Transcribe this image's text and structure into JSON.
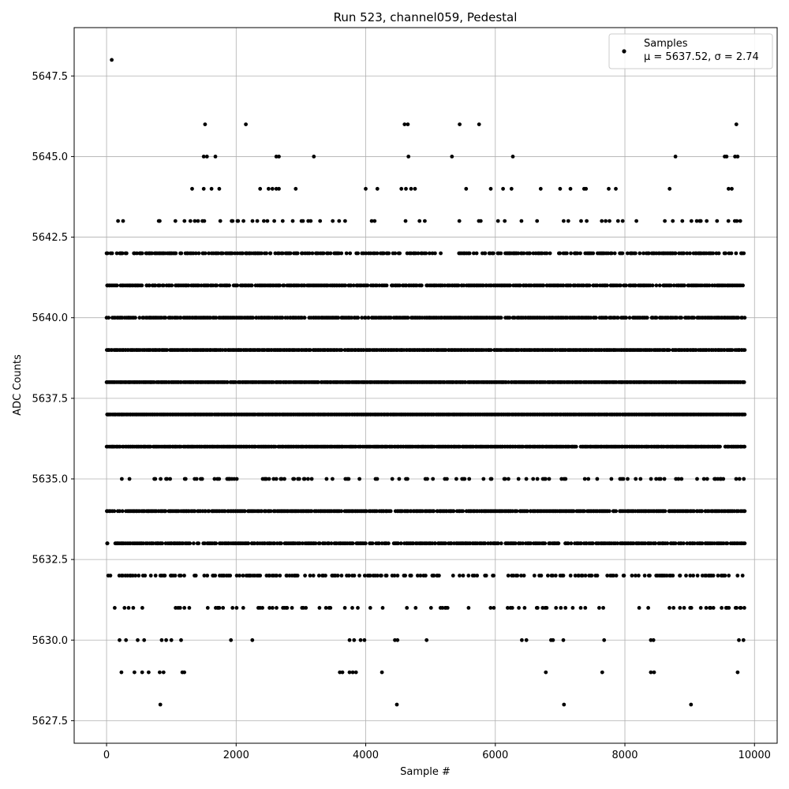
{
  "chart_data": {
    "type": "scatter",
    "title": "Run 523, channel059, Pedestal",
    "xlabel": "Sample #",
    "ylabel": "ADC Counts",
    "xlim": [
      -500,
      10350
    ],
    "ylim": [
      5626.8,
      5649.0
    ],
    "x_ticks": [
      0,
      2000,
      4000,
      6000,
      8000,
      10000
    ],
    "y_ticks": [
      5627.5,
      5630.0,
      5632.5,
      5635.0,
      5637.5,
      5640.0,
      5642.5,
      5645.0,
      5647.5
    ],
    "x_tick_labels": [
      "0",
      "2000",
      "4000",
      "6000",
      "8000",
      "10000"
    ],
    "y_tick_labels": [
      "5627.5",
      "5630.0",
      "5632.5",
      "5635.0",
      "5637.5",
      "5640.0",
      "5642.5",
      "5645.0",
      "5647.5"
    ],
    "grid": true,
    "marker_color": "#000000",
    "legend": {
      "position": "top-right",
      "entry_line1": "Samples",
      "entry_line2": "μ = 5637.52, σ = 2.74"
    },
    "series": [
      {
        "name": "Samples",
        "x_range": [
          0,
          9850
        ],
        "n_points": 9850,
        "outliers": [
          [
            80,
            5648
          ],
          [
            1520,
            5646
          ],
          [
            2150,
            5646
          ],
          [
            4600,
            5646
          ],
          [
            4650,
            5646
          ],
          [
            5450,
            5646
          ],
          [
            5750,
            5646
          ],
          [
            9720,
            5646
          ],
          [
            1500,
            5645
          ],
          [
            1550,
            5645
          ],
          [
            1680,
            5645
          ],
          [
            2620,
            5645
          ],
          [
            2660,
            5645
          ],
          [
            3200,
            5645
          ],
          [
            4660,
            5645
          ],
          [
            5330,
            5645
          ],
          [
            6270,
            5645
          ],
          [
            8780,
            5645
          ],
          [
            9540,
            5645
          ],
          [
            9570,
            5645
          ],
          [
            9700,
            5645
          ],
          [
            9740,
            5645
          ],
          [
            1320,
            5644
          ],
          [
            1500,
            5644
          ],
          [
            1620,
            5644
          ],
          [
            1740,
            5644
          ],
          [
            2370,
            5644
          ],
          [
            2500,
            5644
          ],
          [
            2560,
            5644
          ],
          [
            2620,
            5644
          ],
          [
            2660,
            5644
          ],
          [
            2920,
            5644
          ],
          [
            4000,
            5644
          ],
          [
            4180,
            5644
          ],
          [
            4550,
            5644
          ],
          [
            4620,
            5644
          ],
          [
            4700,
            5644
          ],
          [
            4760,
            5644
          ],
          [
            5550,
            5644
          ],
          [
            5930,
            5644
          ],
          [
            6120,
            5644
          ],
          [
            6250,
            5644
          ],
          [
            6700,
            5644
          ],
          [
            7000,
            5644
          ],
          [
            7160,
            5644
          ],
          [
            7370,
            5644
          ],
          [
            7400,
            5644
          ],
          [
            7750,
            5644
          ],
          [
            7860,
            5644
          ],
          [
            8690,
            5644
          ],
          [
            9600,
            5644
          ],
          [
            9650,
            5644
          ],
          [
            830,
            5628
          ],
          [
            4480,
            5628
          ],
          [
            7060,
            5628
          ],
          [
            9020,
            5628
          ],
          [
            230,
            5629
          ],
          [
            430,
            5629
          ],
          [
            550,
            5629
          ],
          [
            650,
            5629
          ],
          [
            820,
            5629
          ],
          [
            880,
            5629
          ],
          [
            1170,
            5629
          ],
          [
            1200,
            5629
          ],
          [
            3600,
            5629
          ],
          [
            3640,
            5629
          ],
          [
            3750,
            5629
          ],
          [
            3800,
            5629
          ],
          [
            3850,
            5629
          ],
          [
            4250,
            5629
          ],
          [
            6780,
            5629
          ],
          [
            7650,
            5629
          ],
          [
            8400,
            5629
          ],
          [
            8450,
            5629
          ],
          [
            9740,
            5629
          ],
          [
            200,
            5630
          ],
          [
            300,
            5630
          ],
          [
            480,
            5630
          ],
          [
            580,
            5630
          ],
          [
            850,
            5630
          ],
          [
            920,
            5630
          ],
          [
            1000,
            5630
          ],
          [
            1150,
            5630
          ],
          [
            1920,
            5630
          ],
          [
            2250,
            5630
          ],
          [
            3750,
            5630
          ],
          [
            3820,
            5630
          ],
          [
            3920,
            5630
          ],
          [
            3980,
            5630
          ],
          [
            4450,
            5630
          ],
          [
            4490,
            5630
          ],
          [
            4940,
            5630
          ],
          [
            6410,
            5630
          ],
          [
            6480,
            5630
          ],
          [
            6860,
            5630
          ],
          [
            6890,
            5630
          ],
          [
            7050,
            5630
          ],
          [
            7680,
            5630
          ],
          [
            8400,
            5630
          ],
          [
            8440,
            5630
          ],
          [
            9760,
            5630
          ],
          [
            9830,
            5630
          ]
        ]
      }
    ]
  }
}
